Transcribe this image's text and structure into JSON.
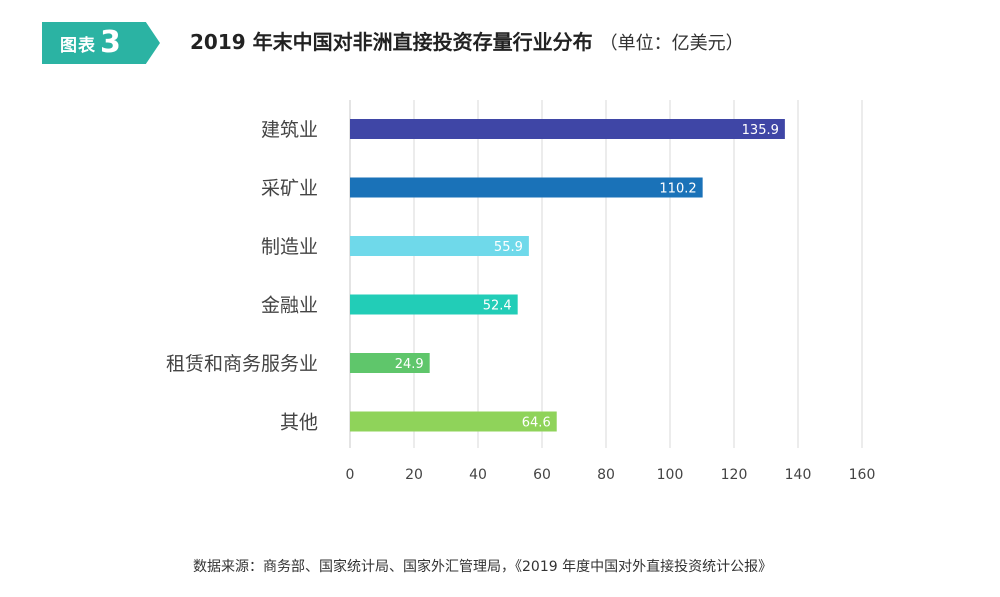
{
  "figure": {
    "label": "图表",
    "number": "3",
    "title": "2019 年末中国对非洲直接投资存量行业分布",
    "unit": "（单位：亿美元）",
    "source": "数据来源：商务部、国家统计局、国家外汇管理局，《2019 年度中国对外直接投资统计公报》"
  },
  "chart_data": {
    "type": "bar",
    "orientation": "horizontal",
    "categories": [
      "建筑业",
      "采矿业",
      "制造业",
      "金融业",
      "租赁和商务服务业",
      "其他"
    ],
    "values": [
      135.9,
      110.2,
      55.9,
      52.4,
      24.9,
      64.6
    ],
    "value_labels": [
      "135.9",
      "110.2",
      "55.9",
      "52.4",
      "24.9",
      "64.6"
    ],
    "colors": [
      "#3f46a6",
      "#1a72b8",
      "#6fd9ea",
      "#22cdb7",
      "#5fc66b",
      "#8fd35a"
    ],
    "xlim": [
      0,
      160
    ],
    "xticks": [
      0,
      20,
      40,
      60,
      80,
      100,
      120,
      140,
      160
    ],
    "grid": true,
    "legend": "none"
  }
}
